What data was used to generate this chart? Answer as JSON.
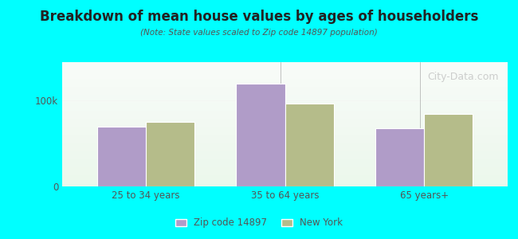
{
  "title": "Breakdown of mean house values by ages of householders",
  "subtitle": "(Note: State values scaled to Zip code 14897 population)",
  "categories": [
    "25 to 34 years",
    "35 to 64 years",
    "65 years+"
  ],
  "zip_values": [
    70000,
    120000,
    68000
  ],
  "ny_values": [
    75000,
    97000,
    85000
  ],
  "zip_color": "#b09cc8",
  "ny_color": "#b5bc8a",
  "background_color": "#00ffff",
  "plot_bg_top": "#e8f5e9",
  "plot_bg_bottom": "#f5fff5",
  "yticks": [
    0,
    100000
  ],
  "ytick_labels": [
    "0",
    "100k"
  ],
  "ylim": [
    0,
    145000
  ],
  "legend_zip_label": "Zip code 14897",
  "legend_ny_label": "New York",
  "bar_width": 0.35,
  "watermark": "City-Data.com"
}
